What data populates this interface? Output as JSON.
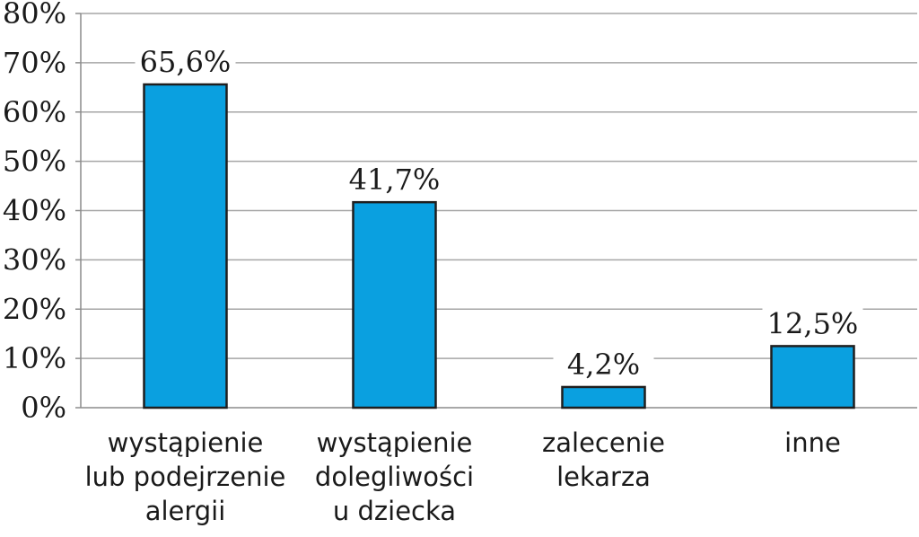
{
  "chart_data": {
    "type": "bar",
    "categories": [
      [
        "wystąpienie",
        "lub podejrzenie",
        "alergii"
      ],
      [
        "wystąpienie",
        "dolegliwości",
        "u dziecka"
      ],
      [
        "zalecenie",
        "lekarza"
      ],
      [
        "inne"
      ]
    ],
    "values": [
      65.6,
      41.7,
      4.2,
      12.5
    ],
    "data_labels": [
      "65,6%",
      "41,7%",
      "4,2%",
      "12,5%"
    ],
    "yticks": [
      0,
      10,
      20,
      30,
      40,
      50,
      60,
      70,
      80
    ],
    "ytick_labels": [
      "0%",
      "10%",
      "20%",
      "30%",
      "40%",
      "50%",
      "60%",
      "70%",
      "80%"
    ],
    "ylim": [
      0,
      80
    ],
    "grid": true,
    "title": "",
    "xlabel": "",
    "ylabel": "",
    "bar_color": "#0aa0e0"
  }
}
